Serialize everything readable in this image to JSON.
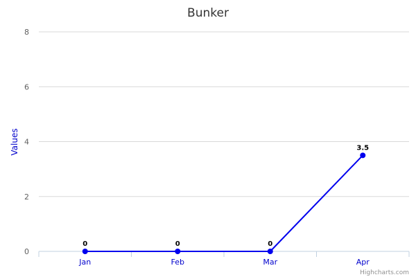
{
  "chart_data": {
    "type": "line",
    "title": "Bunker",
    "xlabel": "",
    "ylabel": "Values",
    "categories": [
      "Jan",
      "Feb",
      "Mar",
      "Apr"
    ],
    "series": [
      {
        "values": [
          0,
          0,
          0,
          3.5
        ],
        "color": "#0000ee"
      }
    ],
    "data_labels": [
      "0",
      "0",
      "0",
      "3.5"
    ],
    "ylim": [
      0,
      8
    ],
    "yticks": [
      0,
      2,
      4,
      6,
      8
    ],
    "grid": true,
    "legend": "none"
  },
  "credit": "Highcharts.com",
  "colors": {
    "series": "#0000ee",
    "axis_label": "#0000cc",
    "grid": "#d8d8d8"
  }
}
